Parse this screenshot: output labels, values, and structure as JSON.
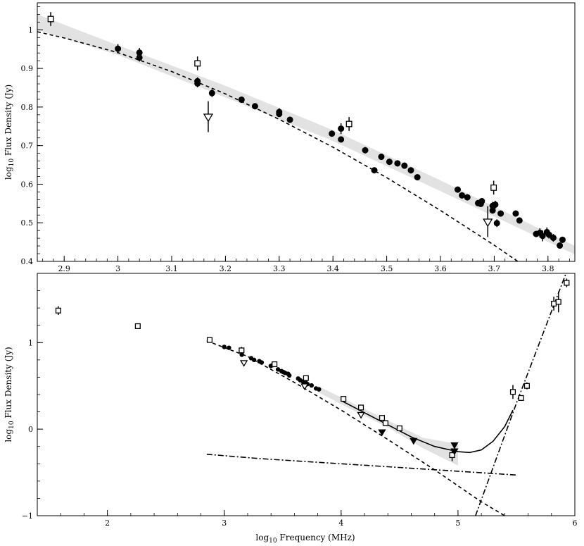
{
  "figure": {
    "x_axis_label": "log10 Frequency (MHz)",
    "x_axis_label_main": "log",
    "x_axis_label_sub": "10",
    "x_axis_label_rest": " Frequency (MHz)"
  },
  "chart_data": [
    {
      "type": "scatter",
      "panel": "top",
      "xlabel": "",
      "ylabel": "log10 Flux Density (Jy)",
      "ylabel_main": "log",
      "ylabel_sub": "10",
      "ylabel_rest": " Flux Density (Jy)",
      "xlim": [
        2.85,
        3.85
      ],
      "ylim": [
        0.4,
        1.07
      ],
      "x_ticks": [
        2.9,
        3.0,
        3.1,
        3.2,
        3.3,
        3.4,
        3.5,
        3.6,
        3.7,
        3.8
      ],
      "x_tick_labels": [
        "2.9",
        "3",
        "3.1",
        "3.2",
        "3.3",
        "3.4",
        "3.5",
        "3.6",
        "3.7",
        "3.8"
      ],
      "y_ticks": [
        0.4,
        0.5,
        0.6,
        0.7,
        0.8,
        0.9,
        1.0
      ],
      "y_tick_labels": [
        "0.4",
        "0.5",
        "0.6",
        "0.7",
        "0.8",
        "0.9",
        "1"
      ],
      "series": [
        {
          "marker": "filled-circle",
          "points": [
            [
              3.0,
              0.951,
              0.012
            ],
            [
              3.04,
              0.941,
              0.012
            ],
            [
              3.04,
              0.928,
              0.01
            ],
            [
              3.148,
              0.867,
              0.01
            ],
            [
              3.148,
              0.861,
              0.01
            ],
            [
              3.175,
              0.836,
              0.01
            ],
            [
              3.23,
              0.819,
              0.008
            ],
            [
              3.255,
              0.802,
              0.008
            ],
            [
              3.3,
              0.787,
              0.01
            ],
            [
              3.3,
              0.782,
              0.008
            ],
            [
              3.32,
              0.767,
              0.008
            ],
            [
              3.398,
              0.731,
              0.008
            ],
            [
              3.415,
              0.744,
              0.014
            ],
            [
              3.415,
              0.716,
              0.008
            ],
            [
              3.46,
              0.688,
              0.008
            ],
            [
              3.477,
              0.636,
              0.008
            ],
            [
              3.49,
              0.671,
              0.008
            ],
            [
              3.505,
              0.658,
              0.008
            ],
            [
              3.52,
              0.654,
              0.008
            ],
            [
              3.533,
              0.648,
              0.008
            ],
            [
              3.545,
              0.636,
              0.008
            ],
            [
              3.557,
              0.618,
              0.008
            ],
            [
              3.632,
              0.586,
              0.008
            ],
            [
              3.64,
              0.571,
              0.008
            ],
            [
              3.65,
              0.566,
              0.008
            ],
            [
              3.67,
              0.551,
              0.008
            ],
            [
              3.675,
              0.549,
              0.008
            ],
            [
              3.677,
              0.556,
              0.008
            ],
            [
              3.697,
              0.532,
              0.008
            ],
            [
              3.697,
              0.544,
              0.01
            ],
            [
              3.702,
              0.547,
              0.01
            ],
            [
              3.705,
              0.499,
              0.01
            ],
            [
              3.712,
              0.524,
              0.008
            ],
            [
              3.74,
              0.524,
              0.008
            ],
            [
              3.747,
              0.506,
              0.008
            ],
            [
              3.778,
              0.471,
              0.008
            ],
            [
              3.785,
              0.474,
              0.012
            ],
            [
              3.79,
              0.466,
              0.014
            ],
            [
              3.798,
              0.476,
              0.012
            ],
            [
              3.802,
              0.469,
              0.01
            ],
            [
              3.81,
              0.461,
              0.01
            ],
            [
              3.822,
              0.441,
              0.008
            ],
            [
              3.827,
              0.456,
              0.008
            ]
          ]
        },
        {
          "marker": "open-square",
          "points": [
            [
              2.875,
              1.028,
              0.018
            ],
            [
              3.148,
              0.913,
              0.018
            ],
            [
              3.43,
              0.756,
              0.018
            ],
            [
              3.699,
              0.591,
              0.018
            ]
          ]
        },
        {
          "marker": "open-triangle-down",
          "points": [
            [
              3.168,
              0.775,
              0.04
            ],
            [
              3.688,
              0.503,
              0.04
            ]
          ]
        }
      ],
      "models": [
        {
          "style": "shaded-band",
          "x": [
            2.85,
            3.0,
            3.2,
            3.4,
            3.6,
            3.85
          ],
          "upper": [
            1.04,
            0.96,
            0.855,
            0.74,
            0.61,
            0.44
          ],
          "lower": [
            1.0,
            0.935,
            0.825,
            0.712,
            0.582,
            0.418
          ]
        },
        {
          "style": "dashed",
          "x": [
            2.85,
            2.9,
            3.0,
            3.1,
            3.2,
            3.3,
            3.4,
            3.5,
            3.6,
            3.7,
            3.8
          ],
          "y": [
            0.995,
            0.979,
            0.941,
            0.892,
            0.834,
            0.768,
            0.696,
            0.617,
            0.532,
            0.442,
            0.346
          ]
        }
      ]
    },
    {
      "type": "scatter",
      "panel": "bottom",
      "xlabel": "log10 Frequency (MHz)",
      "ylabel": "log10 Flux Density (Jy)",
      "ylabel_main": "log",
      "ylabel_sub": "10",
      "ylabel_rest": " Flux Density (Jy)",
      "xlim": [
        1.4,
        6.0
      ],
      "ylim": [
        -1.0,
        1.8
      ],
      "x_ticks": [
        2,
        3,
        4,
        5,
        6
      ],
      "x_tick_labels": [
        "2",
        "3",
        "4",
        "5",
        "6"
      ],
      "y_ticks": [
        -1,
        0,
        1
      ],
      "y_tick_labels": [
        "−1",
        "0",
        "1"
      ],
      "series": [
        {
          "marker": "filled-circle",
          "points": [
            [
              3.0,
              0.95
            ],
            [
              3.04,
              0.94
            ],
            [
              3.15,
              0.86
            ],
            [
              3.23,
              0.82
            ],
            [
              3.255,
              0.8
            ],
            [
              3.3,
              0.785
            ],
            [
              3.32,
              0.77
            ],
            [
              3.398,
              0.73
            ],
            [
              3.415,
              0.74
            ],
            [
              3.46,
              0.69
            ],
            [
              3.49,
              0.67
            ],
            [
              3.505,
              0.66
            ],
            [
              3.52,
              0.65
            ],
            [
              3.545,
              0.64
            ],
            [
              3.557,
              0.62
            ],
            [
              3.632,
              0.585
            ],
            [
              3.65,
              0.565
            ],
            [
              3.675,
              0.55
            ],
            [
              3.697,
              0.54
            ],
            [
              3.712,
              0.52
            ],
            [
              3.747,
              0.505
            ],
            [
              3.785,
              0.47
            ],
            [
              3.81,
              0.46
            ]
          ]
        },
        {
          "marker": "open-square",
          "points": [
            [
              1.58,
              1.37,
              0.05
            ],
            [
              2.26,
              1.19,
              0.03
            ],
            [
              2.875,
              1.03,
              0.03
            ],
            [
              3.148,
              0.91,
              0.04
            ],
            [
              3.43,
              0.75,
              0.03
            ],
            [
              3.699,
              0.59,
              0.03
            ],
            [
              4.02,
              0.35,
              0.02
            ],
            [
              4.17,
              0.25,
              0.03
            ],
            [
              4.35,
              0.13,
              0.03
            ],
            [
              4.38,
              0.07,
              0.02
            ],
            [
              4.5,
              0.01,
              0.02
            ],
            [
              4.95,
              -0.3,
              0.07
            ],
            [
              5.47,
              0.43,
              0.08
            ],
            [
              5.54,
              0.36,
              0.03
            ],
            [
              5.59,
              0.5,
              0.04
            ],
            [
              5.82,
              1.45,
              0.08
            ],
            [
              5.86,
              1.47,
              0.12
            ],
            [
              5.93,
              1.69,
              0.05
            ]
          ]
        },
        {
          "marker": "open-triangle-down",
          "points": [
            [
              3.168,
              0.77
            ],
            [
              3.688,
              0.5
            ],
            [
              4.17,
              0.17
            ]
          ]
        },
        {
          "marker": "filled-triangle-down",
          "points": [
            [
              4.35,
              -0.03
            ],
            [
              4.62,
              -0.13
            ],
            [
              4.97,
              -0.18
            ],
            [
              4.97,
              -0.25
            ]
          ]
        }
      ],
      "models": [
        {
          "style": "shaded-band",
          "x": [
            3.8,
            4.1,
            4.4,
            4.7,
            5.0
          ],
          "upper": [
            0.5,
            0.3,
            0.1,
            -0.1,
            -0.17
          ],
          "lower": [
            0.43,
            0.22,
            0.02,
            -0.22,
            -0.42
          ]
        },
        {
          "style": "solid",
          "x": [
            4.0,
            4.3,
            4.6,
            4.8,
            5.0,
            5.1,
            5.2,
            5.3,
            5.4,
            5.47
          ],
          "y": [
            0.33,
            0.12,
            -0.09,
            -0.2,
            -0.26,
            -0.27,
            -0.24,
            -0.14,
            0.03,
            0.22
          ]
        },
        {
          "style": "dashed",
          "x": [
            2.85,
            3.2,
            3.6,
            4.0,
            4.4,
            4.8,
            5.2,
            5.4
          ],
          "y": [
            1.02,
            0.84,
            0.54,
            0.22,
            -0.12,
            -0.47,
            -0.84,
            -1.0
          ]
        },
        {
          "style": "dash-dot",
          "x": [
            2.85,
            3.3,
            4.0,
            4.7,
            5.5
          ],
          "y": [
            -0.29,
            -0.34,
            -0.4,
            -0.46,
            -0.53
          ]
        },
        {
          "style": "dash-dot",
          "x": [
            5.15,
            5.5,
            5.93
          ],
          "y": [
            -1.0,
            0.3,
            1.82
          ]
        }
      ]
    }
  ]
}
